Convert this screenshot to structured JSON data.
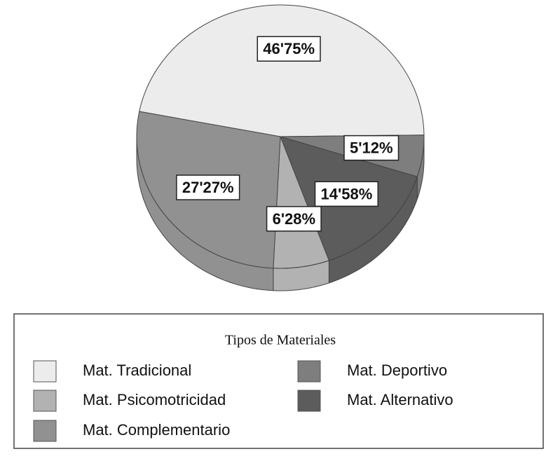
{
  "chart_data": {
    "type": "pie",
    "categories": [
      "Mat. Tradicional",
      "Mat. Deportivo",
      "Mat. Alternativo",
      "Mat. Psicomotricidad",
      "Mat. Complementario"
    ],
    "values": [
      46.75,
      5.12,
      14.58,
      6.28,
      27.27
    ],
    "value_labels": [
      "46'75%",
      "5'12%",
      "14'58%",
      "6'28%",
      "27'27%"
    ],
    "colors": [
      "#ececec",
      "#7e7e7e",
      "#5c5c5c",
      "#b2b2b2",
      "#919191"
    ],
    "legend_title": "Tipos de Materiales",
    "legend": "bottom"
  }
}
